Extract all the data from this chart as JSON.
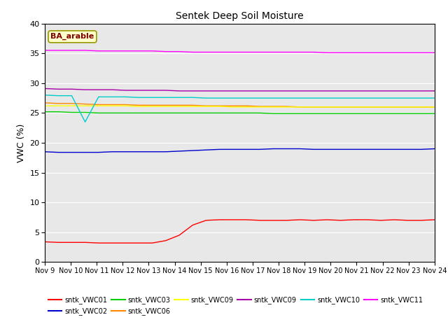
{
  "title": "Sentek Deep Soil Moisture",
  "ylabel": "VWC (%)",
  "ylim": [
    0,
    40
  ],
  "yticks": [
    0,
    5,
    10,
    15,
    20,
    25,
    30,
    35,
    40
  ],
  "xtick_labels": [
    "Nov 9",
    "Nov 10",
    "Nov 11",
    "Nov 12",
    "Nov 13",
    "Nov 14",
    "Nov 15",
    "Nov 16",
    "Nov 17",
    "Nov 18",
    "Nov 19",
    "Nov 20",
    "Nov 21",
    "Nov 22",
    "Nov 23",
    "Nov 24"
  ],
  "annotation_text": "BA_arable",
  "annotation_color": "#800000",
  "annotation_box_color": "#ffffcc",
  "annotation_edge_color": "#999900",
  "bg_color": "#e8e8e8",
  "fig_bg": "#ffffff",
  "grid_color": "#ffffff",
  "series": [
    {
      "label": "sntk_VWC01",
      "color": "#ff0000",
      "data": [
        3.4,
        3.3,
        3.3,
        3.3,
        3.2,
        3.2,
        3.2,
        3.2,
        3.2,
        3.6,
        4.5,
        6.2,
        7.0,
        7.1,
        7.1,
        7.1,
        7.0,
        7.0,
        7.0,
        7.1,
        7.0,
        7.1,
        7.0,
        7.1,
        7.1,
        7.0,
        7.1,
        7.0,
        7.0,
        7.1
      ]
    },
    {
      "label": "sntk_VWC02",
      "color": "#0000cc",
      "data": [
        18.5,
        18.4,
        18.4,
        18.4,
        18.4,
        18.5,
        18.5,
        18.5,
        18.5,
        18.5,
        18.6,
        18.7,
        18.8,
        18.9,
        18.9,
        18.9,
        18.9,
        19.0,
        19.0,
        19.0,
        18.9,
        18.9,
        18.9,
        18.9,
        18.9,
        18.9,
        18.9,
        18.9,
        18.9,
        19.0
      ]
    },
    {
      "label": "sntk_VWC03",
      "color": "#00cc00",
      "data": [
        25.2,
        25.2,
        25.1,
        25.1,
        25.0,
        25.0,
        25.0,
        25.0,
        25.0,
        25.0,
        25.0,
        25.0,
        25.0,
        25.0,
        25.0,
        25.0,
        25.0,
        24.9,
        24.9,
        24.9,
        24.9,
        24.9,
        24.9,
        24.9,
        24.9,
        24.9,
        24.9,
        24.9,
        24.9,
        24.9
      ]
    },
    {
      "label": "sntk_VWC06",
      "color": "#ff8800",
      "data": [
        26.7,
        26.6,
        26.6,
        26.5,
        26.4,
        26.4,
        26.4,
        26.3,
        26.3,
        26.3,
        26.3,
        26.3,
        26.2,
        26.2,
        26.2,
        26.2,
        26.1,
        26.1,
        26.1,
        26.0,
        26.0,
        26.0,
        26.0,
        26.0,
        26.0,
        26.0,
        26.0,
        26.0,
        26.0,
        26.0
      ]
    },
    {
      "label": "sntk_VWC09",
      "color": "#ffff00",
      "data": [
        26.2,
        26.2,
        26.2,
        26.2,
        26.2,
        26.2,
        26.2,
        26.1,
        26.1,
        26.1,
        26.1,
        26.1,
        26.1,
        26.1,
        26.0,
        26.0,
        26.0,
        26.0,
        26.0,
        26.0,
        26.0,
        26.0,
        26.0,
        26.0,
        26.0,
        26.0,
        26.0,
        26.0,
        26.0,
        26.0
      ]
    },
    {
      "label": "sntk_VWC09",
      "color": "#aa00aa",
      "data": [
        29.1,
        29.0,
        29.0,
        28.9,
        28.9,
        28.9,
        28.8,
        28.8,
        28.8,
        28.8,
        28.7,
        28.7,
        28.7,
        28.7,
        28.7,
        28.7,
        28.7,
        28.7,
        28.7,
        28.7,
        28.7,
        28.7,
        28.7,
        28.7,
        28.7,
        28.7,
        28.7,
        28.7,
        28.7,
        28.7
      ]
    },
    {
      "label": "sntk_VWC10",
      "color": "#00cccc",
      "data": [
        28.0,
        27.9,
        27.9,
        23.5,
        27.7,
        27.7,
        27.7,
        27.6,
        27.6,
        27.6,
        27.6,
        27.6,
        27.5,
        27.5,
        27.5,
        27.5,
        27.5,
        27.5,
        27.5,
        27.5,
        27.5,
        27.5,
        27.5,
        27.5,
        27.5,
        27.5,
        27.5,
        27.5,
        27.5,
        27.5
      ]
    },
    {
      "label": "sntk_VWC11",
      "color": "#ff00ff",
      "data": [
        35.5,
        35.5,
        35.5,
        35.5,
        35.4,
        35.4,
        35.4,
        35.4,
        35.4,
        35.3,
        35.3,
        35.2,
        35.2,
        35.2,
        35.2,
        35.2,
        35.2,
        35.2,
        35.2,
        35.2,
        35.2,
        35.1,
        35.1,
        35.1,
        35.1,
        35.1,
        35.1,
        35.1,
        35.1,
        35.1
      ]
    }
  ],
  "legend_order": [
    0,
    1,
    2,
    3,
    4,
    5,
    6,
    7
  ],
  "legend_ncol": 6,
  "legend_fontsize": 7
}
